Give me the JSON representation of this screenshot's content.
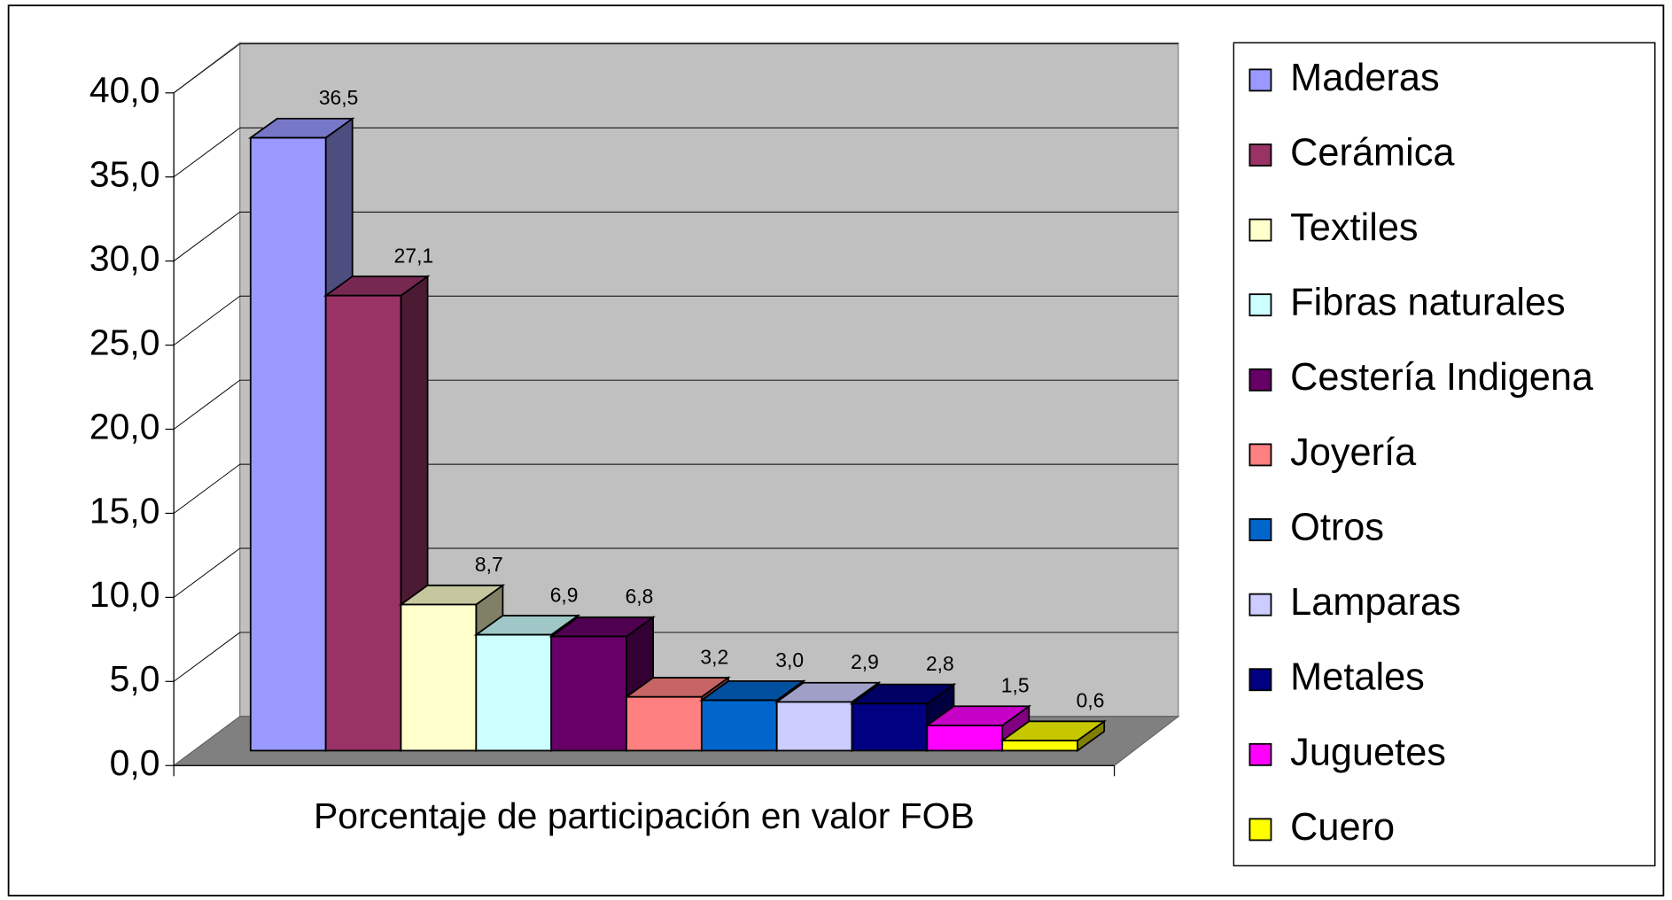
{
  "chart_data": {
    "type": "bar3d",
    "categories": [
      "Porcentaje de participación en valor FOB"
    ],
    "series": [
      {
        "name": "Maderas",
        "color": "#9999ff",
        "values": [
          36.5
        ],
        "value_labels": [
          "36,5"
        ]
      },
      {
        "name": "Cerámica",
        "color": "#993366",
        "values": [
          27.1
        ],
        "value_labels": [
          "27,1"
        ]
      },
      {
        "name": "Textiles",
        "color": "#ffffcc",
        "values": [
          8.7
        ],
        "value_labels": [
          "8,7"
        ]
      },
      {
        "name": "Fibras naturales",
        "color": "#ccffff",
        "values": [
          6.9
        ],
        "value_labels": [
          "6,9"
        ]
      },
      {
        "name": "Cestería Indigena",
        "color": "#660066",
        "values": [
          6.8
        ],
        "value_labels": [
          "6,8"
        ]
      },
      {
        "name": "Joyería",
        "color": "#ff8080",
        "values": [
          3.2
        ],
        "value_labels": [
          "3,2"
        ]
      },
      {
        "name": "Otros",
        "color": "#0066cc",
        "values": [
          3.0
        ],
        "value_labels": [
          "3,0"
        ]
      },
      {
        "name": "Lamparas",
        "color": "#ccccff",
        "values": [
          2.9
        ],
        "value_labels": [
          "2,9"
        ]
      },
      {
        "name": "Metales",
        "color": "#000080",
        "values": [
          2.8
        ],
        "value_labels": [
          "2,8"
        ]
      },
      {
        "name": "Juguetes",
        "color": "#ff00ff",
        "values": [
          1.5
        ],
        "value_labels": [
          "1,5"
        ]
      },
      {
        "name": "Cuero",
        "color": "#ffff00",
        "values": [
          0.6
        ],
        "value_labels": [
          "0,6"
        ]
      }
    ],
    "ylim": [
      0,
      40
    ],
    "yticks": [
      {
        "value": 0,
        "label": "0,0"
      },
      {
        "value": 5,
        "label": "5,0"
      },
      {
        "value": 10,
        "label": "10,0"
      },
      {
        "value": 15,
        "label": "15,0"
      },
      {
        "value": 20,
        "label": "20,0"
      },
      {
        "value": 25,
        "label": "25,0"
      },
      {
        "value": 30,
        "label": "30,0"
      },
      {
        "value": 35,
        "label": "35,0"
      },
      {
        "value": 40,
        "label": "40,0"
      }
    ],
    "grid": true,
    "legend": "right"
  }
}
